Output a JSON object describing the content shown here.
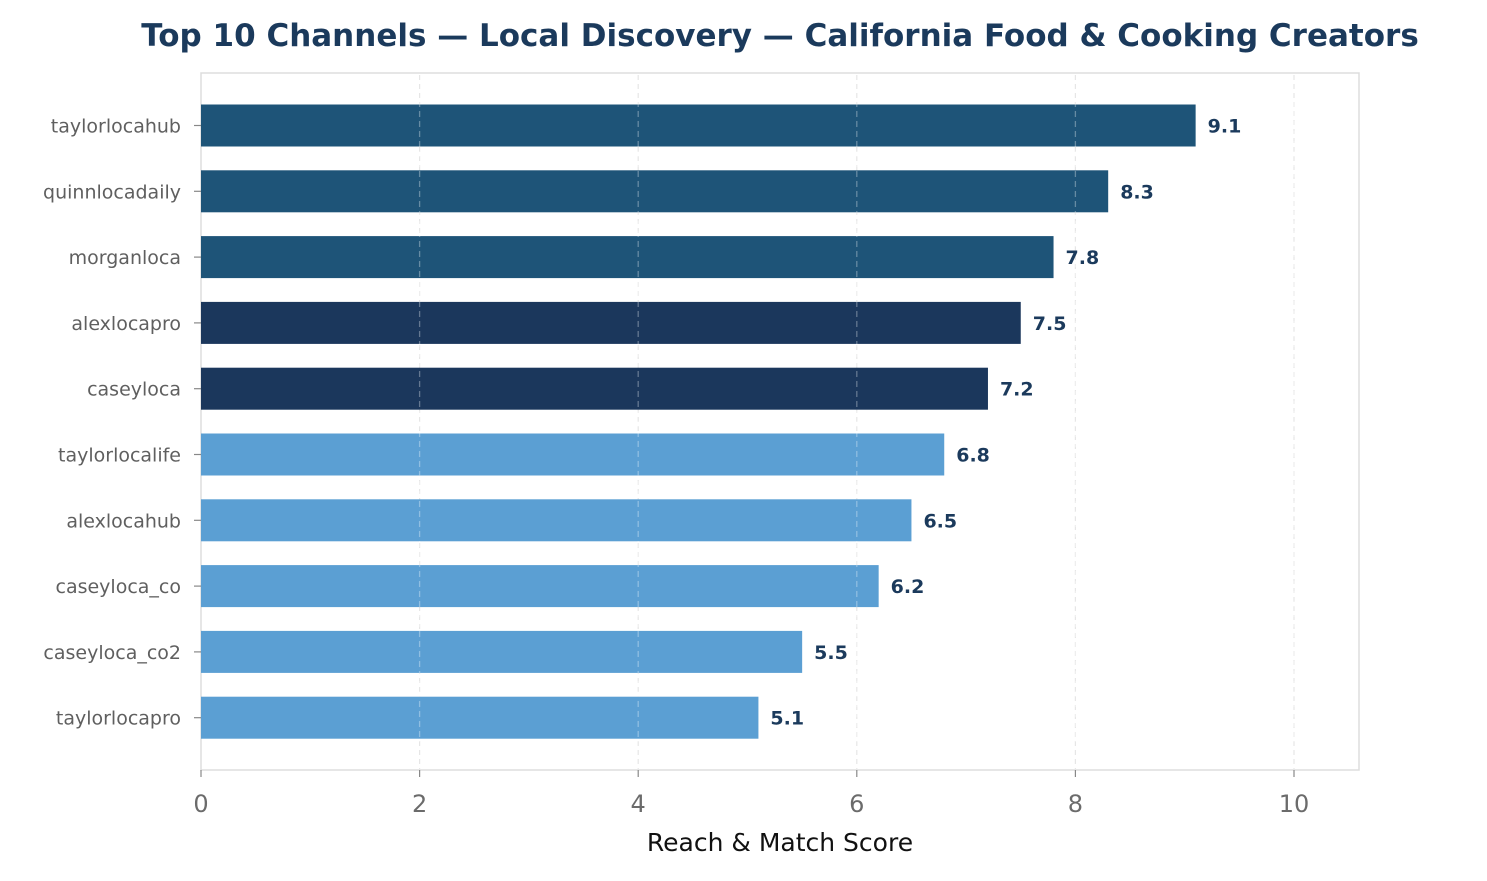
{
  "chart_data": {
    "type": "bar",
    "orientation": "horizontal",
    "title": "Top 10 Channels — Local Discovery — California Food & Cooking Creators",
    "xlabel": "Reach & Match Score",
    "ylabel": "",
    "xlim": [
      0,
      10.6
    ],
    "xticks": [
      0,
      2,
      4,
      6,
      8,
      10
    ],
    "xtick_labels": [
      "0",
      "2",
      "4",
      "6",
      "8",
      "10"
    ],
    "grid": "vertical dashed",
    "categories": [
      "taylorlocahub",
      "quinnlocadaily",
      "morganloca",
      "alexlocapro",
      "caseyloca",
      "taylorlocalife",
      "alexlocahub",
      "caseyloca_co",
      "caseyloca_co2",
      "taylorlocapro"
    ],
    "values": [
      9.1,
      8.3,
      7.8,
      7.5,
      7.2,
      6.8,
      6.5,
      6.2,
      5.5,
      5.1
    ],
    "value_labels": [
      "9.1",
      "8.3",
      "7.8",
      "7.5",
      "7.2",
      "6.8",
      "6.5",
      "6.2",
      "5.5",
      "5.1"
    ],
    "bar_colors": [
      "#1e5478",
      "#1e5478",
      "#1e5478",
      "#1b375c",
      "#1b375c",
      "#5b9fd3",
      "#5b9fd3",
      "#5b9fd3",
      "#5b9fd3",
      "#5b9fd3"
    ]
  }
}
